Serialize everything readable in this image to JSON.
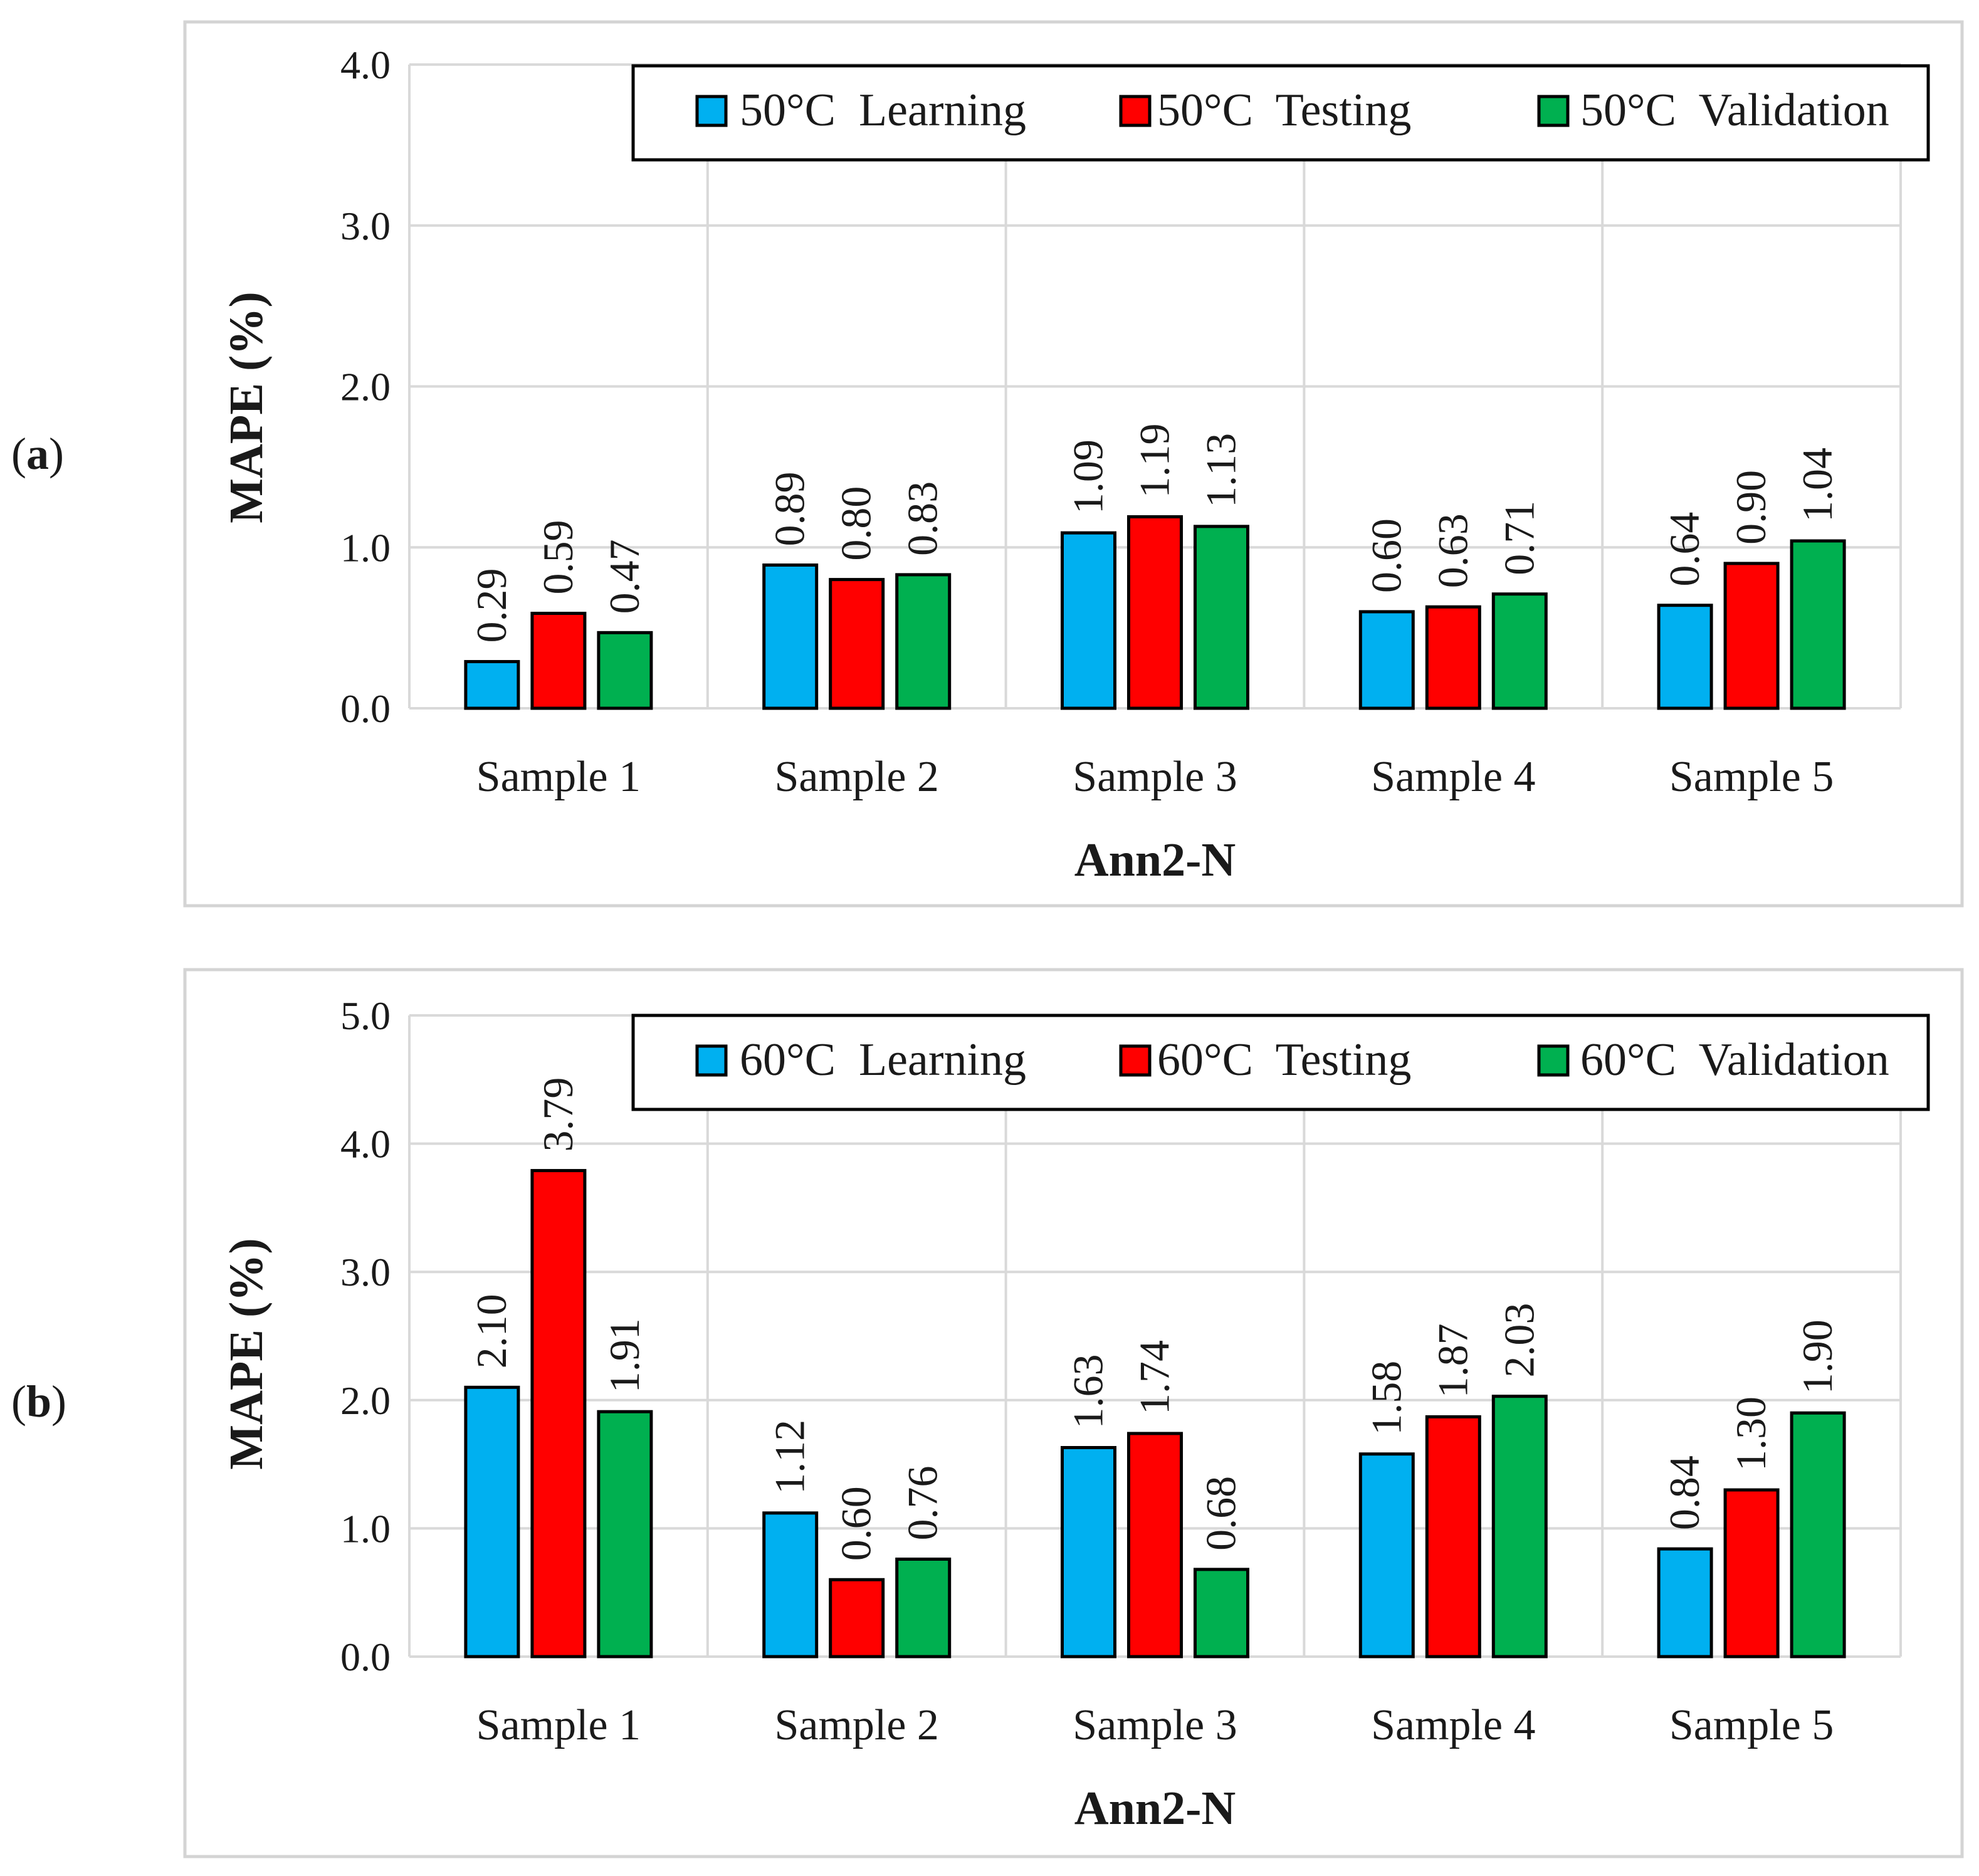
{
  "chart_data": [
    {
      "panel_label": "(a)",
      "label_parts": [
        "(",
        "a",
        ")"
      ],
      "type": "bar",
      "xlabel": "Ann2-N",
      "ylabel": "MAPE (%)",
      "ylim": [
        0,
        4
      ],
      "yticks": [
        "0.0",
        "1.0",
        "2.0",
        "3.0",
        "4.0"
      ],
      "categories": [
        "Sample 1",
        "Sample 2",
        "Sample 3",
        "Sample 4",
        "Sample 5"
      ],
      "grid": true,
      "legend_position": "top-right",
      "series": [
        {
          "name": "50°C  Learning",
          "color": "#00b0f0",
          "values": [
            0.29,
            0.89,
            1.09,
            0.6,
            0.64
          ],
          "labels": [
            "0.29",
            "0.89",
            "1.09",
            "0.60",
            "0.64"
          ]
        },
        {
          "name": "50°C  Testing",
          "color": "#ff0000",
          "values": [
            0.59,
            0.8,
            1.19,
            0.63,
            0.9
          ],
          "labels": [
            "0.59",
            "0.80",
            "1.19",
            "0.63",
            "0.90"
          ]
        },
        {
          "name": "50°C  Validation",
          "color": "#00b050",
          "values": [
            0.47,
            0.83,
            1.13,
            0.71,
            1.04
          ],
          "labels": [
            "0.47",
            "0.83",
            "1.13",
            "0.71",
            "1.04"
          ]
        }
      ]
    },
    {
      "panel_label": "(b)",
      "label_parts": [
        "(",
        "b",
        ")"
      ],
      "type": "bar",
      "xlabel": "Ann2-N",
      "ylabel": "MAPE (%)",
      "ylim": [
        0,
        5
      ],
      "yticks": [
        "0.0",
        "1.0",
        "2.0",
        "3.0",
        "4.0",
        "5.0"
      ],
      "categories": [
        "Sample 1",
        "Sample 2",
        "Sample 3",
        "Sample 4",
        "Sample 5"
      ],
      "grid": true,
      "legend_position": "top-right",
      "series": [
        {
          "name": "60°C  Learning",
          "color": "#00b0f0",
          "values": [
            2.1,
            1.12,
            1.63,
            1.58,
            0.84
          ],
          "labels": [
            "2.10",
            "1.12",
            "1.63",
            "1.58",
            "0.84"
          ]
        },
        {
          "name": "60°C  Testing",
          "color": "#ff0000",
          "values": [
            3.79,
            0.6,
            1.74,
            1.87,
            1.3
          ],
          "labels": [
            "3.79",
            "0.60",
            "1.74",
            "1.87",
            "1.30"
          ]
        },
        {
          "name": "60°C  Validation",
          "color": "#00b050",
          "values": [
            1.91,
            0.76,
            0.68,
            2.03,
            1.9
          ],
          "labels": [
            "1.91",
            "0.76",
            "0.68",
            "2.03",
            "1.90"
          ]
        }
      ]
    }
  ]
}
